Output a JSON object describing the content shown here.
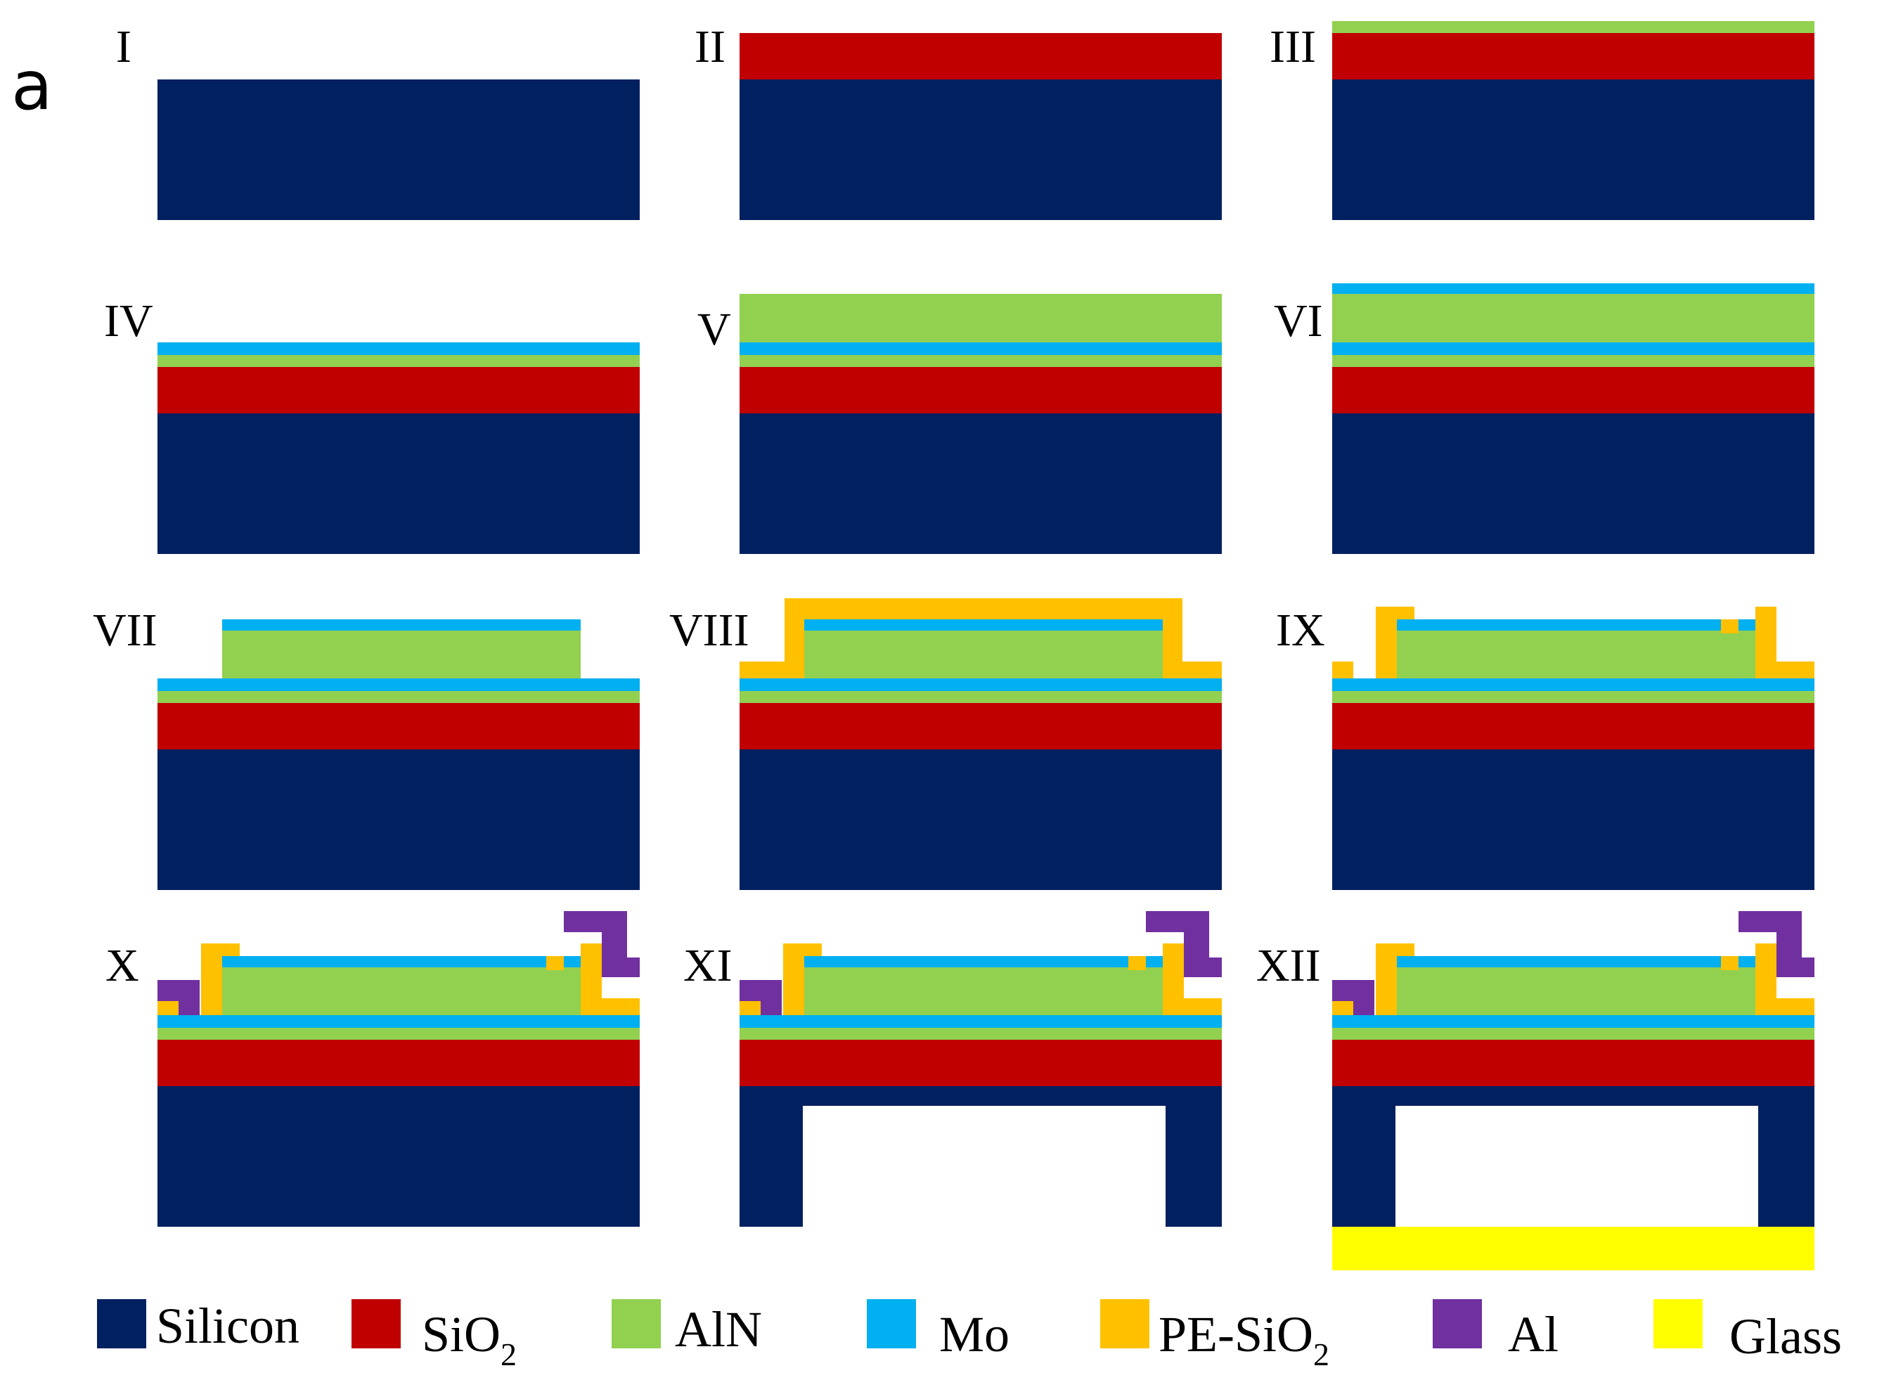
{
  "figure": {
    "panel_letter": "a",
    "steps": [
      "I",
      "II",
      "III",
      "IV",
      "V",
      "VI",
      "VII",
      "VIII",
      "IX",
      "X",
      "XI",
      "XII"
    ]
  },
  "materials": {
    "silicon": {
      "label": "Silicon",
      "color": "#012060"
    },
    "sio2": {
      "label": "SiO",
      "sub": "2",
      "color": "#C00000"
    },
    "aln": {
      "label": "AlN",
      "color": "#92D050"
    },
    "mo": {
      "label": "Mo",
      "color": "#00B0F0"
    },
    "pe_sio2": {
      "label": "PE-SiO",
      "sub": "2",
      "color": "#FFC000"
    },
    "al": {
      "label": "Al",
      "color": "#7030A0"
    },
    "glass": {
      "label": "Glass",
      "color": "#FFFF00"
    }
  },
  "legend_order": [
    "silicon",
    "sio2",
    "aln",
    "mo",
    "pe_sio2",
    "al",
    "glass"
  ]
}
